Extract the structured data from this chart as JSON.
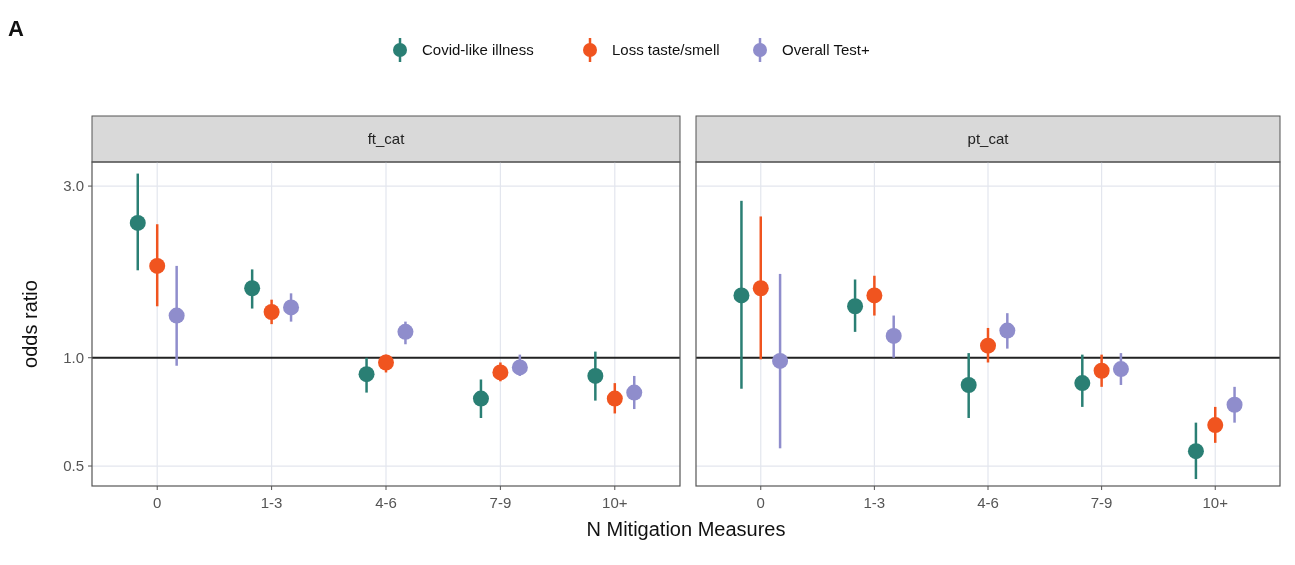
{
  "chart_data": [
    {
      "type": "scatter",
      "title": "ft_cat",
      "xlabel": "N Mitigation Measures",
      "ylabel": "odds ratio",
      "annotations": [
        "A"
      ],
      "legend": "top",
      "marker": "circle",
      "grid": true,
      "log": "y",
      "categories": [
        "0",
        "1-3",
        "4-6",
        "7-9",
        "10+"
      ],
      "ylim": [
        0.44,
        3.5
      ],
      "yticks": [
        {
          "value": 0.5,
          "label": "0.5"
        },
        {
          "value": 1,
          "label": "1.0"
        },
        {
          "value": 3,
          "label": "3.0"
        }
      ],
      "ref_lines": [
        {
          "axis": "y",
          "value": 1,
          "color": "#222222"
        }
      ],
      "series": [
        {
          "name": "Covid-like illness",
          "color": "#2a7f74",
          "values": [
            2.37,
            1.56,
            0.9,
            0.77,
            0.89
          ],
          "errors": [
            [
              1.75,
              3.25
            ],
            [
              1.37,
              1.76
            ],
            [
              0.8,
              1.0
            ],
            [
              0.68,
              0.87
            ],
            [
              0.76,
              1.04
            ]
          ]
        },
        {
          "name": "Loss taste/smell",
          "color": "#f0541f",
          "values": [
            1.8,
            1.34,
            0.97,
            0.91,
            0.77
          ],
          "errors": [
            [
              1.39,
              2.35
            ],
            [
              1.24,
              1.45
            ],
            [
              0.91,
              1.02
            ],
            [
              0.86,
              0.97
            ],
            [
              0.7,
              0.85
            ]
          ]
        },
        {
          "name": "Overall Test+",
          "color": "#8f8dcc",
          "values": [
            1.31,
            1.38,
            1.18,
            0.94,
            0.8
          ],
          "errors": [
            [
              0.95,
              1.8
            ],
            [
              1.26,
              1.51
            ],
            [
              1.09,
              1.26
            ],
            [
              0.89,
              1.02
            ],
            [
              0.72,
              0.89
            ]
          ]
        }
      ]
    },
    {
      "type": "scatter",
      "title": "pt_cat",
      "marker": "circle",
      "grid": true,
      "log": "y",
      "tick_labels": "x",
      "categories": [
        "0",
        "1-3",
        "4-6",
        "7-9",
        "10+"
      ],
      "ylim": [
        0.44,
        3.5
      ],
      "yticks": [
        {
          "value": 0.5,
          "label": null
        },
        {
          "value": 1,
          "label": null
        },
        {
          "value": 3,
          "label": null
        }
      ],
      "ref_lines": [
        {
          "axis": "y",
          "value": 1,
          "color": "#222222"
        }
      ],
      "series": [
        {
          "color": "#2a7f74",
          "values": [
            1.49,
            1.39,
            0.84,
            0.85,
            0.55
          ],
          "errors": [
            [
              0.82,
              2.73
            ],
            [
              1.18,
              1.65
            ],
            [
              0.68,
              1.03
            ],
            [
              0.73,
              1.02
            ],
            [
              0.46,
              0.66
            ]
          ]
        },
        {
          "color": "#f0541f",
          "values": [
            1.56,
            1.49,
            1.08,
            0.92,
            0.65
          ],
          "errors": [
            [
              0.99,
              2.47
            ],
            [
              1.31,
              1.69
            ],
            [
              0.97,
              1.21
            ],
            [
              0.83,
              1.02
            ],
            [
              0.58,
              0.73
            ]
          ]
        },
        {
          "color": "#8f8dcc",
          "values": [
            0.98,
            1.15,
            1.19,
            0.93,
            0.74
          ],
          "errors": [
            [
              0.56,
              1.71
            ],
            [
              1.0,
              1.31
            ],
            [
              1.06,
              1.33
            ],
            [
              0.84,
              1.03
            ],
            [
              0.66,
              0.83
            ]
          ]
        }
      ]
    }
  ]
}
